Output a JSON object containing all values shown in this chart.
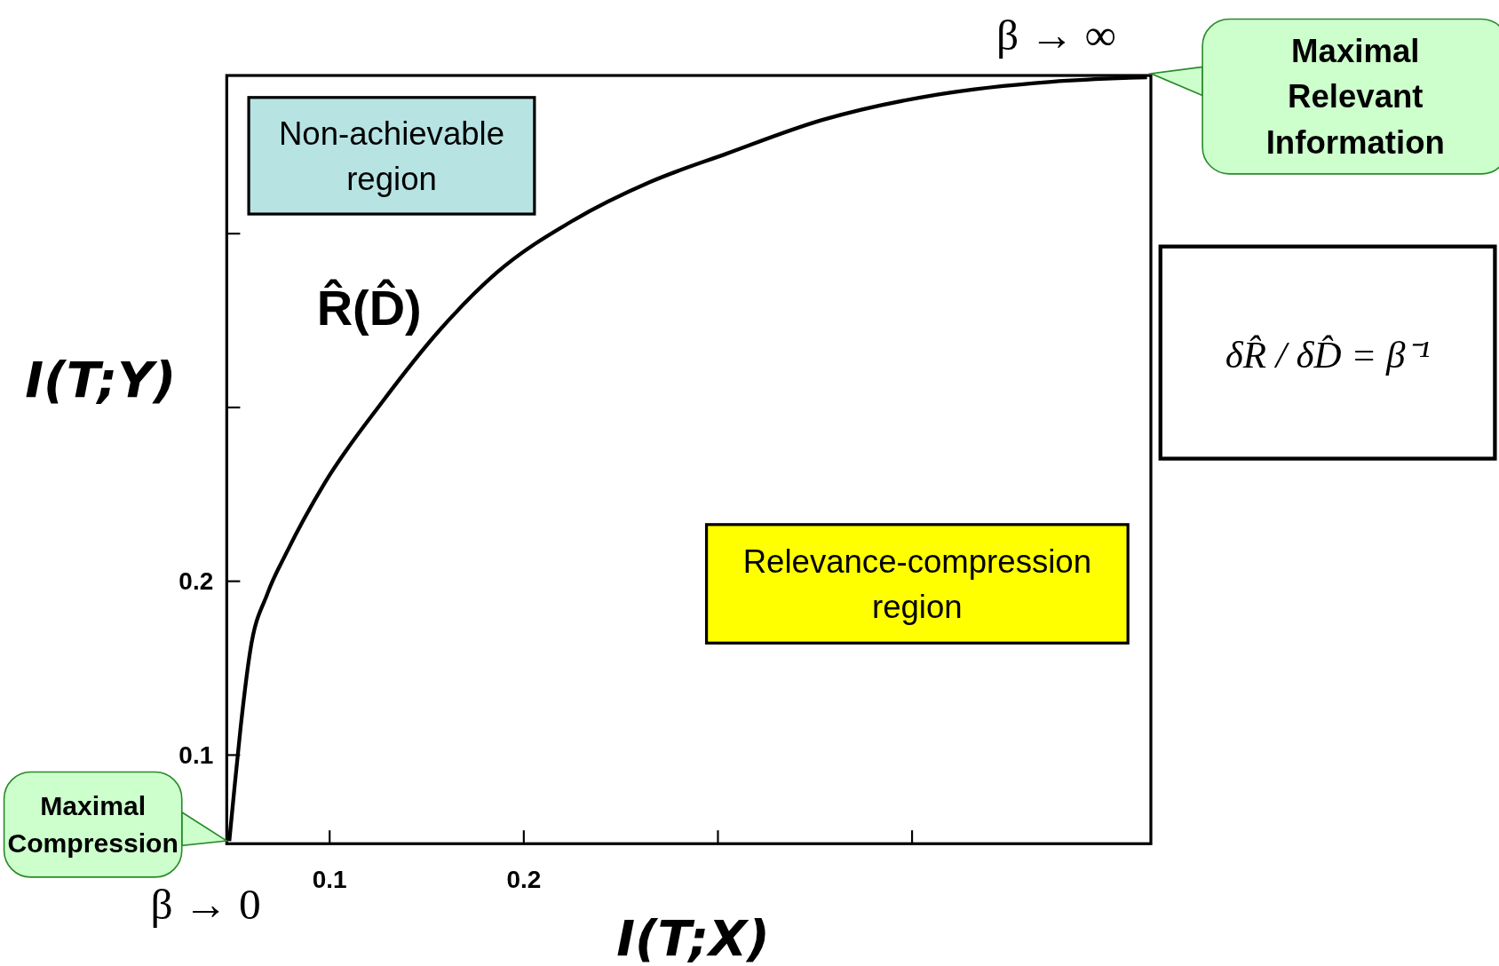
{
  "chart_data": {
    "type": "line",
    "xlabel": "I(T;X)",
    "ylabel": "I(T;Y)",
    "x": [
      0.0483,
      0.0507,
      0.0542,
      0.0591,
      0.068,
      0.0778,
      0.0975,
      0.127,
      0.1567,
      0.186,
      0.2256,
      0.265,
      0.3044,
      0.3537,
      0.4128,
      0.4719,
      0.521
    ],
    "series": [
      {
        "color": "#000000",
        "values": [
          0.0505,
          0.078,
          0.1165,
          0.16,
          0.193,
          0.2165,
          0.2566,
          0.303,
          0.3445,
          0.3775,
          0.4077,
          0.4297,
          0.446,
          0.4654,
          0.48,
          0.4874,
          0.49
        ]
      }
    ],
    "xlim": [
      0.047,
      0.523
    ],
    "ylim": [
      0.049,
      0.491
    ],
    "xticks": [
      0.1,
      0.2,
      {
        "value": 0.3,
        "label": null
      },
      {
        "value": 0.4,
        "label": null
      }
    ],
    "yticks": [
      0.1,
      0.2,
      {
        "value": 0.3,
        "label": null
      },
      {
        "value": 0.4,
        "label": null
      }
    ],
    "grid": false,
    "marker": "none",
    "line_style": "solid",
    "annotations": [
      "Non-achievable region",
      "R̂(D̂)",
      "Relevance-compression region",
      "Maximal Relevant Information",
      "Maximal Compression",
      "β → ∞",
      "β → 0",
      "δR̂ / δD̂ = β⁻¹"
    ]
  }
}
